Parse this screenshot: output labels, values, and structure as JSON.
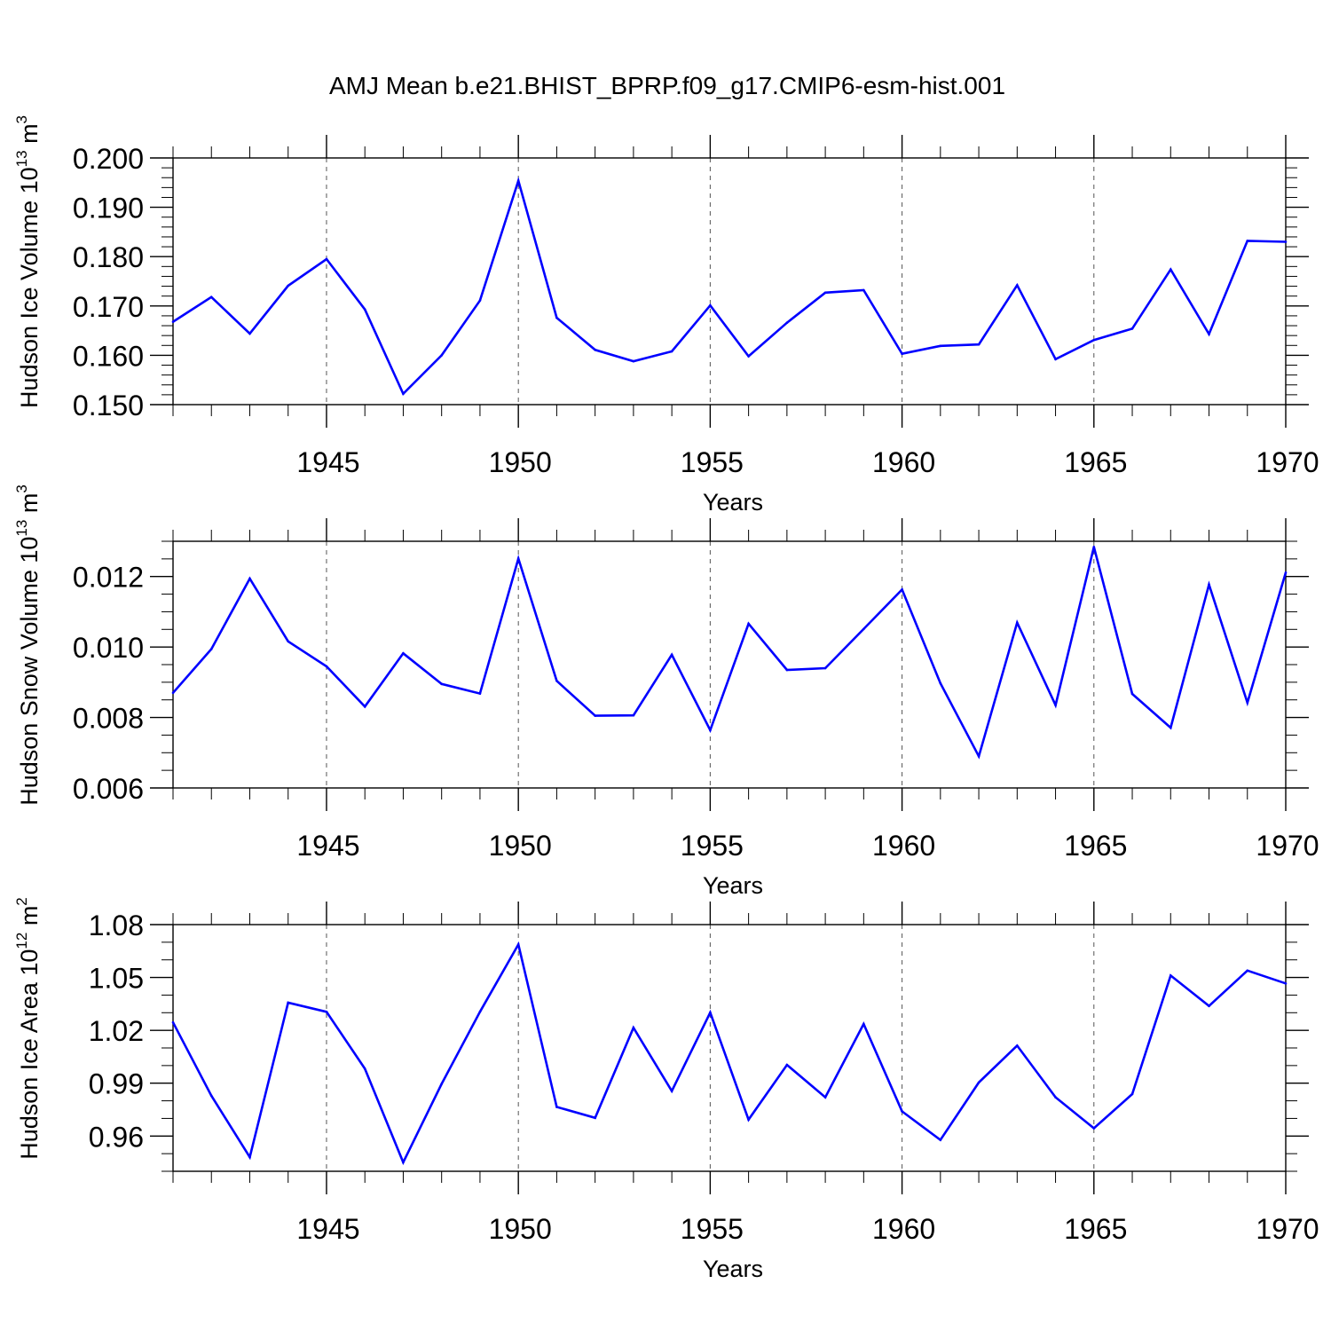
{
  "figure_title": "AMJ Mean b.e21.BHIST_BPRP.f09_g17.CMIP6-esm-hist.001",
  "line_color": "#0000ff",
  "chart_data": [
    {
      "type": "line",
      "title": "AMJ Mean b.e21.BHIST_BPRP.f09_g17.CMIP6-esm-hist.001",
      "xlabel": "Years",
      "ylabel_main": "Hudson Ice Volume 10",
      "ylabel_exp": "13",
      "ylabel_unit": " m",
      "ylabel_unit_exp": "3",
      "xlim": [
        1941,
        1970
      ],
      "ylim": [
        0.15,
        0.2
      ],
      "y_major_step": 0.01,
      "y_minor_step": 0.002,
      "yticks": [
        "0.150",
        "0.160",
        "0.170",
        "0.180",
        "0.190",
        "0.200"
      ],
      "xticks": [
        "1945",
        "1950",
        "1955",
        "1960",
        "1965",
        "1970"
      ],
      "grid": "vertical dashed at major x ticks",
      "x": [
        1941,
        1942,
        1943,
        1944,
        1945,
        1946,
        1947,
        1948,
        1949,
        1950,
        1951,
        1952,
        1953,
        1954,
        1955,
        1956,
        1957,
        1958,
        1959,
        1960,
        1961,
        1962,
        1963,
        1964,
        1965,
        1966,
        1967,
        1968,
        1969,
        1970
      ],
      "values": [
        0.1668,
        0.1718,
        0.1644,
        0.1741,
        0.1795,
        0.1693,
        0.1522,
        0.16,
        0.1711,
        0.1954,
        0.1676,
        0.1611,
        0.1588,
        0.1608,
        0.1701,
        0.1598,
        0.1666,
        0.1727,
        0.1732,
        0.1603,
        0.1619,
        0.1622,
        0.1742,
        0.1592,
        0.1631,
        0.1654,
        0.1774,
        0.1643,
        0.1832,
        0.183
      ]
    },
    {
      "type": "line",
      "xlabel": "Years",
      "ylabel_main": "Hudson Snow Volume 10",
      "ylabel_exp": "13",
      "ylabel_unit": " m",
      "ylabel_unit_exp": "3",
      "xlim": [
        1941,
        1970
      ],
      "ylim": [
        0.006,
        0.013
      ],
      "y_major_step": 0.002,
      "y_minor_step": 0.0005,
      "yticks": [
        "0.006",
        "0.008",
        "0.010",
        "0.012"
      ],
      "xticks": [
        "1945",
        "1950",
        "1955",
        "1960",
        "1965",
        "1970"
      ],
      "grid": "vertical dashed at major x ticks",
      "x": [
        1941,
        1942,
        1943,
        1944,
        1945,
        1946,
        1947,
        1948,
        1949,
        1950,
        1951,
        1952,
        1953,
        1954,
        1955,
        1956,
        1957,
        1958,
        1959,
        1960,
        1961,
        1962,
        1963,
        1964,
        1965,
        1966,
        1967,
        1968,
        1969,
        1970
      ],
      "values": [
        0.0087,
        0.00994,
        0.01194,
        0.01016,
        0.00945,
        0.00831,
        0.00982,
        0.00895,
        0.00868,
        0.01251,
        0.00904,
        0.00805,
        0.00806,
        0.00978,
        0.00764,
        0.01066,
        0.00935,
        0.0094,
        0.01051,
        0.01163,
        0.00897,
        0.0069,
        0.01069,
        0.00835,
        0.01284,
        0.00867,
        0.00771,
        0.01177,
        0.00842,
        0.01211
      ]
    },
    {
      "type": "line",
      "xlabel": "Years",
      "ylabel_main": "Hudson Ice Area 10",
      "ylabel_exp": "12",
      "ylabel_unit": " m",
      "ylabel_unit_exp": "2",
      "xlim": [
        1941,
        1970
      ],
      "ylim": [
        0.94,
        1.08
      ],
      "y_major_step": 0.03,
      "y_minor_step": 0.01,
      "yticks": [
        "0.96",
        "0.99",
        "1.02",
        "1.05",
        "1.08"
      ],
      "xticks": [
        "1945",
        "1950",
        "1955",
        "1960",
        "1965",
        "1970"
      ],
      "grid": "vertical dashed at major x ticks",
      "x": [
        1941,
        1942,
        1943,
        1944,
        1945,
        1946,
        1947,
        1948,
        1949,
        1950,
        1951,
        1952,
        1953,
        1954,
        1955,
        1956,
        1957,
        1958,
        1959,
        1960,
        1961,
        1962,
        1963,
        1964,
        1965,
        1966,
        1967,
        1968,
        1969,
        1970
      ],
      "values": [
        1.0245,
        0.9829,
        0.948,
        1.0357,
        1.0305,
        0.9982,
        0.9451,
        0.9896,
        1.0305,
        1.0687,
        0.9765,
        0.9703,
        1.0215,
        0.9855,
        1.0301,
        0.9693,
        1.0004,
        0.982,
        1.0236,
        0.974,
        0.9578,
        0.9904,
        1.0113,
        0.982,
        0.9644,
        0.9838,
        1.0511,
        1.0338,
        1.0539,
        1.0466
      ]
    }
  ]
}
